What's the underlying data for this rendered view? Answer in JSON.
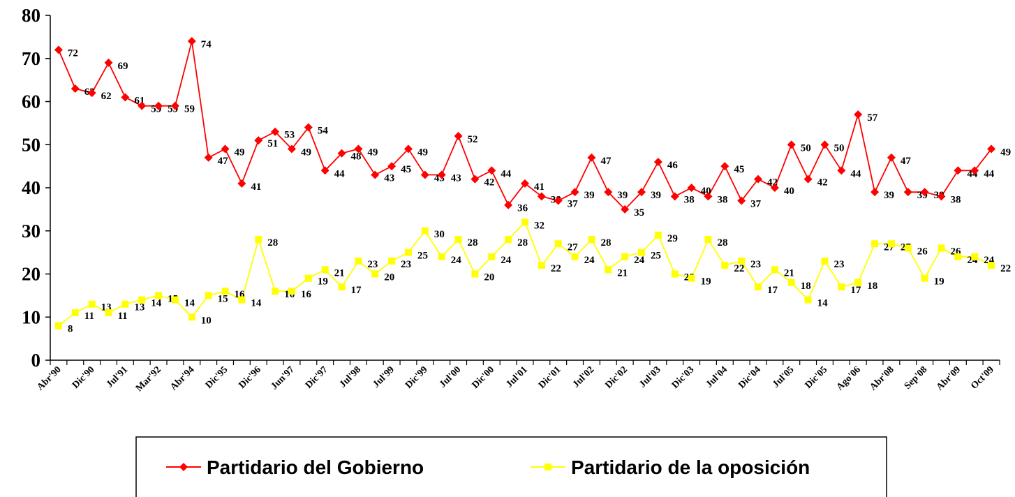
{
  "chart_data": {
    "type": "line",
    "categories": [
      "Abr'90",
      null,
      "Dic'90",
      null,
      "Jul'91",
      null,
      "Mar'92",
      null,
      "Abr'94",
      null,
      "Dic'95",
      null,
      "Dic'96",
      null,
      "Jun'97",
      null,
      "Dic'97",
      null,
      "Jul'98",
      null,
      "Jul'99",
      null,
      "Dic'99",
      null,
      "Jul'00",
      null,
      "Dic'00",
      null,
      "Jul'01",
      null,
      "Dic'01",
      null,
      "Jul'02",
      null,
      "Dic'02",
      null,
      "Jul'03",
      null,
      "Dic'03",
      null,
      "Jul'04",
      null,
      "Dic'04",
      null,
      "Jul'05",
      null,
      "Dic'05",
      null,
      "Ago'06",
      null,
      "Abr'08",
      null,
      "Sep'08",
      null,
      "Abr'09",
      null,
      "Oct'09"
    ],
    "series": [
      {
        "name": "Partidario del Gobierno",
        "color": "#ff0000",
        "marker": "diamond",
        "values": [
          72,
          63,
          62,
          69,
          61,
          59,
          59,
          59,
          74,
          47,
          49,
          41,
          51,
          53,
          49,
          54,
          44,
          48,
          49,
          43,
          45,
          49,
          43,
          43,
          52,
          42,
          44,
          36,
          41,
          38,
          37,
          39,
          47,
          39,
          35,
          39,
          46,
          38,
          40,
          38,
          45,
          37,
          42,
          40,
          50,
          42,
          50,
          44,
          57,
          39,
          47,
          39,
          39,
          38,
          44,
          44,
          49
        ]
      },
      {
        "name": "Partidario de la oposición",
        "color": "#ffff00",
        "marker": "square",
        "values": [
          8,
          11,
          13,
          11,
          13,
          14,
          15,
          14,
          10,
          15,
          16,
          14,
          28,
          16,
          16,
          19,
          21,
          17,
          23,
          20,
          23,
          25,
          30,
          24,
          28,
          20,
          24,
          28,
          32,
          22,
          27,
          24,
          28,
          21,
          24,
          25,
          29,
          20,
          19,
          28,
          22,
          23,
          17,
          21,
          18,
          14,
          23,
          17,
          18,
          27,
          27,
          26,
          19,
          26,
          24,
          24,
          22
        ]
      }
    ],
    "ylim": [
      0,
      80
    ],
    "yticks": [
      0,
      10,
      20,
      30,
      40,
      50,
      60,
      70,
      80
    ],
    "legend": "bottom"
  }
}
